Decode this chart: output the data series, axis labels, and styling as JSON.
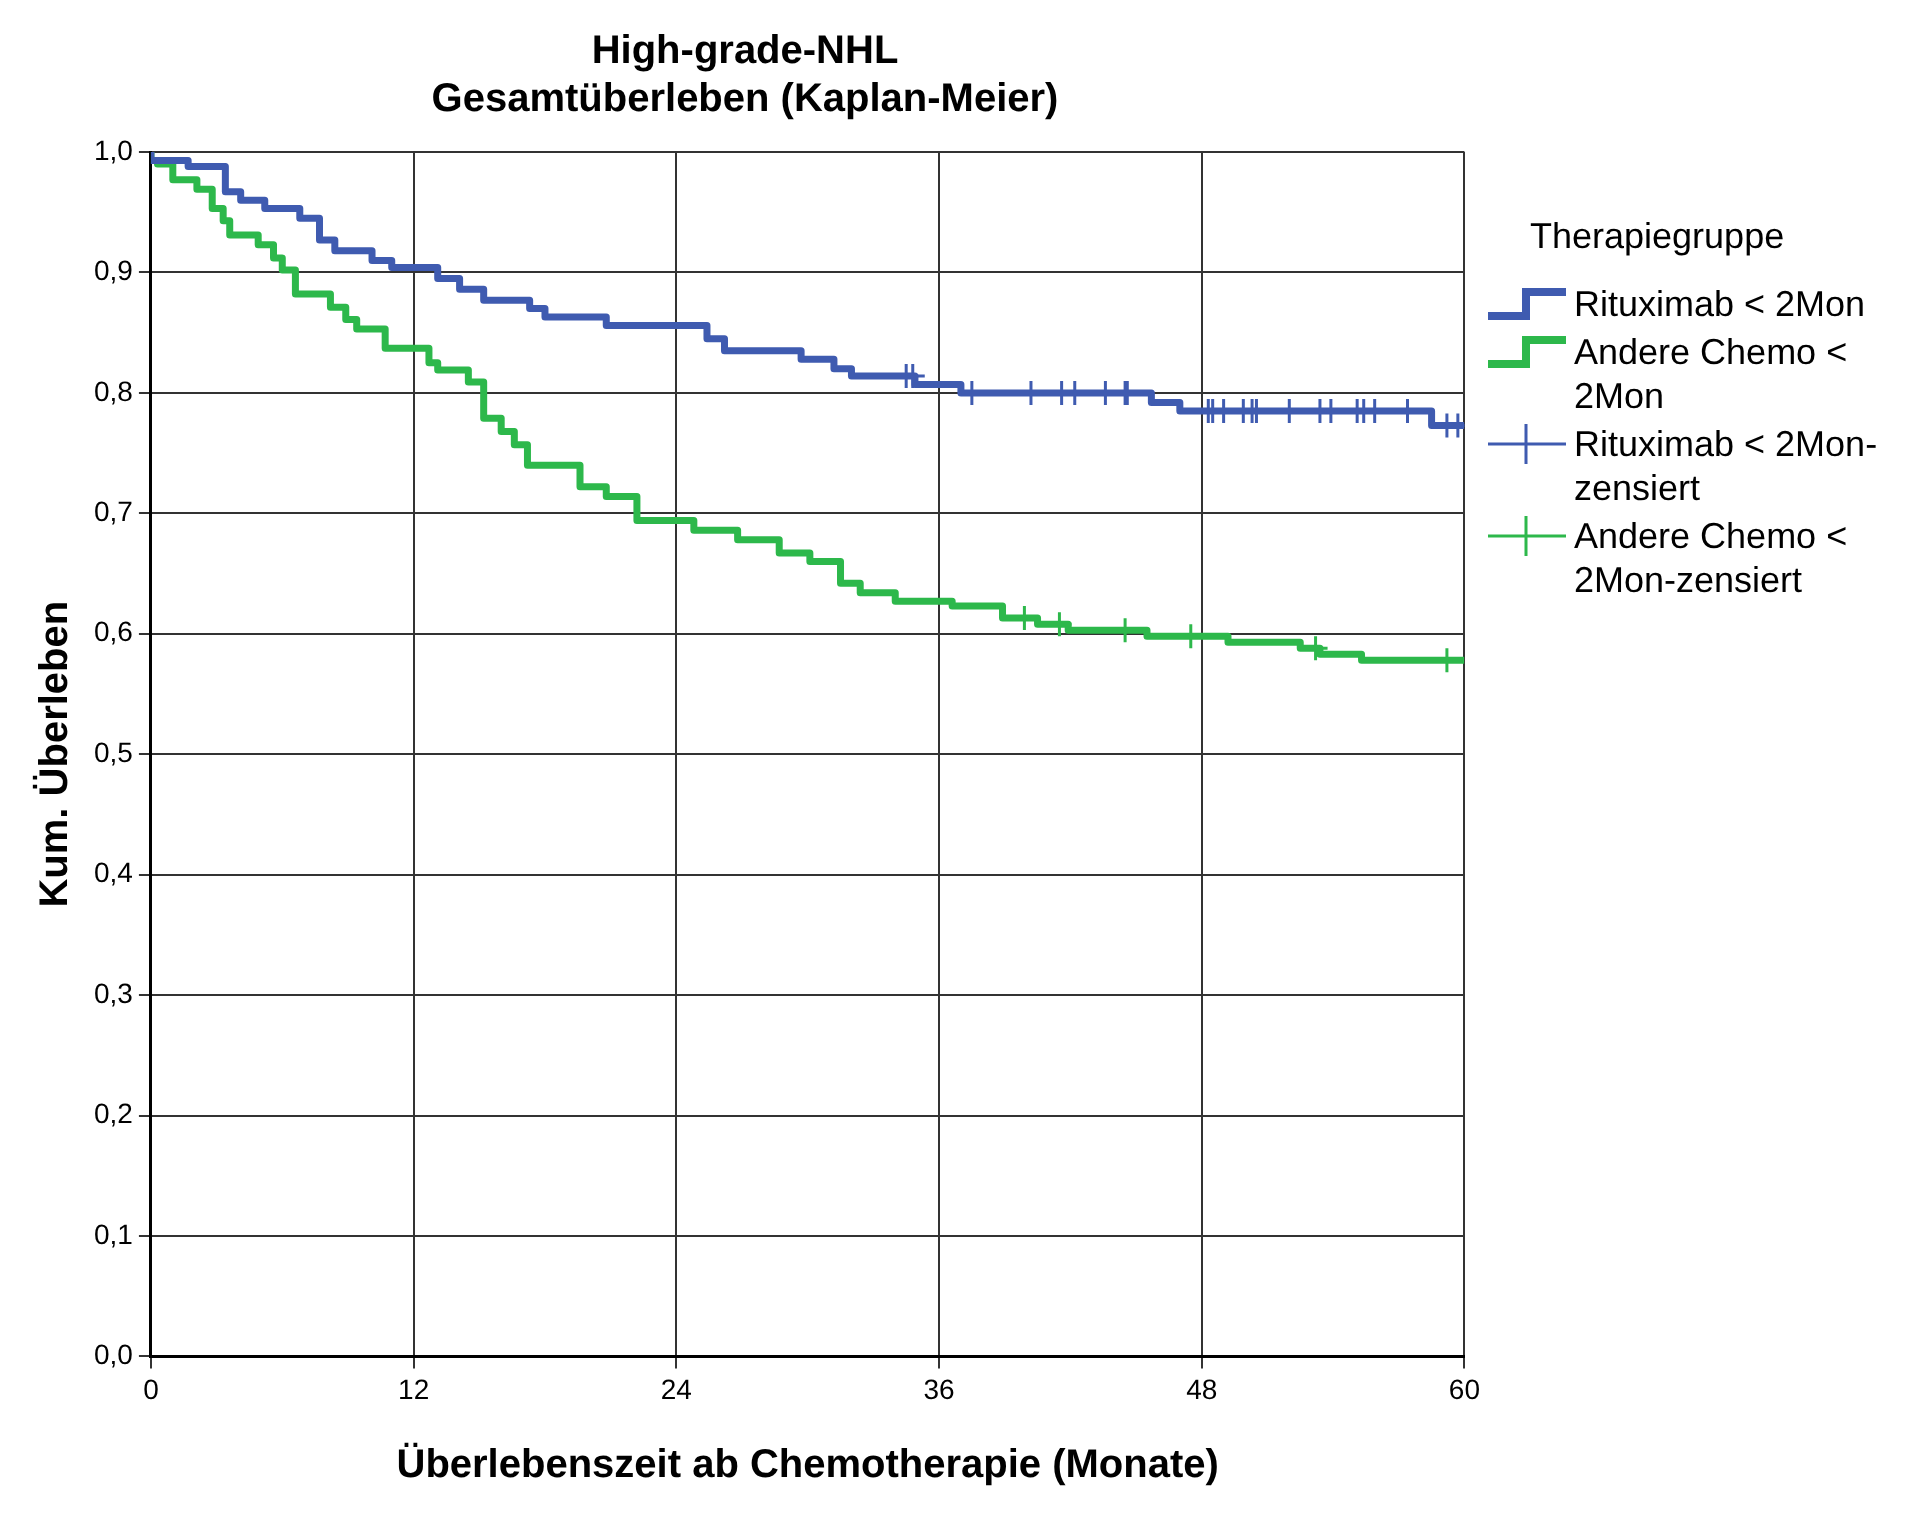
{
  "chart_data": {
    "type": "step",
    "title": "High-grade-NHL",
    "subtitle": "Gesamtüberleben (Kaplan-Meier)",
    "xlabel": "Überlebenszeit ab Chemotherapie (Monate)",
    "ylabel": "Kum. Überleben",
    "legend_title": "Therapiegruppe",
    "legend": "right",
    "grid": true,
    "xlim": [
      0,
      60
    ],
    "xticks": [
      0,
      12,
      24,
      36,
      48,
      60
    ],
    "ylim": [
      0,
      1
    ],
    "yticks": [
      {
        "value": 0,
        "label": "0,0"
      },
      {
        "value": 0.1,
        "label": "0,1"
      },
      {
        "value": 0.2,
        "label": "0,2"
      },
      {
        "value": 0.3,
        "label": "0,3"
      },
      {
        "value": 0.4,
        "label": "0,4"
      },
      {
        "value": 0.5,
        "label": "0,5"
      },
      {
        "value": 0.6,
        "label": "0,6"
      },
      {
        "value": 0.7,
        "label": "0,7"
      },
      {
        "value": 0.8,
        "label": "0,8"
      },
      {
        "value": 0.9,
        "label": "0,9"
      },
      {
        "value": 1,
        "label": "1,0"
      }
    ],
    "series": [
      {
        "name": "Rituximab < 2Mon",
        "color": "#3f5bb0",
        "marker": "none",
        "x": [
          0,
          1.7,
          3.4,
          3.9,
          4.1,
          5.2,
          6.8,
          7.7,
          8.4,
          10.1,
          11,
          13.1,
          14.1,
          15.2,
          17.3,
          18,
          20.8,
          25.4,
          26.2,
          29.7,
          31.2,
          32,
          34.9,
          37,
          45.7,
          47,
          58.5,
          60
        ],
        "values": [
          1,
          0.993,
          0.988,
          0.967,
          0.967,
          0.96,
          0.953,
          0.945,
          0.927,
          0.918,
          0.91,
          0.904,
          0.895,
          0.886,
          0.877,
          0.87,
          0.863,
          0.856,
          0.845,
          0.835,
          0.828,
          0.82,
          0.814,
          0.807,
          0.8,
          0.792,
          0.785,
          0.773
        ]
      },
      {
        "name": "Andere Chemo < 2Mon",
        "color": "#2db84b",
        "marker": "none",
        "x": [
          0,
          0.3,
          1,
          2.1,
          2.8,
          3.3,
          3.6,
          4.9,
          5.6,
          6,
          6.6,
          8.2,
          8.9,
          9.4,
          10.7,
          12.7,
          13.1,
          14.5,
          15.2,
          16,
          16.6,
          17.2,
          19.6,
          20.8,
          22.2,
          24.8,
          26.8,
          28.7,
          30.1,
          31.5,
          32.4,
          34,
          36.6,
          38.9,
          40.5,
          41.9,
          45.5,
          49.2,
          52.5,
          53.4,
          55.3,
          60
        ],
        "values": [
          1,
          0.993,
          0.99,
          0.977,
          0.969,
          0.953,
          0.943,
          0.931,
          0.923,
          0.912,
          0.902,
          0.882,
          0.871,
          0.861,
          0.853,
          0.837,
          0.825,
          0.819,
          0.809,
          0.779,
          0.768,
          0.757,
          0.74,
          0.722,
          0.714,
          0.694,
          0.686,
          0.678,
          0.667,
          0.66,
          0.642,
          0.634,
          0.627,
          0.623,
          0.613,
          0.608,
          0.603,
          0.598,
          0.593,
          0.588,
          0.583,
          0.578
        ]
      },
      {
        "name": "Rituximab < 2Mon-zensiert",
        "type": "scatter",
        "color": "#3f5bb0",
        "marker": "cross",
        "x": [
          34.5,
          34.8,
          37.5,
          40.2,
          41.6,
          42.2,
          43.6,
          44.5,
          44.6,
          48.3,
          48.5,
          49,
          49.9,
          50.3,
          50.5,
          52,
          53.4,
          53.9,
          55.1,
          55.4,
          55.9,
          57.4,
          59.2,
          59.7
        ],
        "values": [
          0.814,
          0.814,
          0.8,
          0.8,
          0.8,
          0.8,
          0.8,
          0.8,
          0.8,
          0.785,
          0.785,
          0.785,
          0.785,
          0.785,
          0.785,
          0.785,
          0.785,
          0.785,
          0.785,
          0.785,
          0.785,
          0.785,
          0.773,
          0.773
        ]
      },
      {
        "name": "Andere Chemo < 2Mon-zensiert",
        "type": "scatter",
        "color": "#2db84b",
        "marker": "cross",
        "x": [
          39.9,
          41.5,
          44.5,
          47.5,
          53.2,
          59.2
        ],
        "values": [
          0.613,
          0.608,
          0.603,
          0.598,
          0.588,
          0.578
        ]
      }
    ]
  }
}
